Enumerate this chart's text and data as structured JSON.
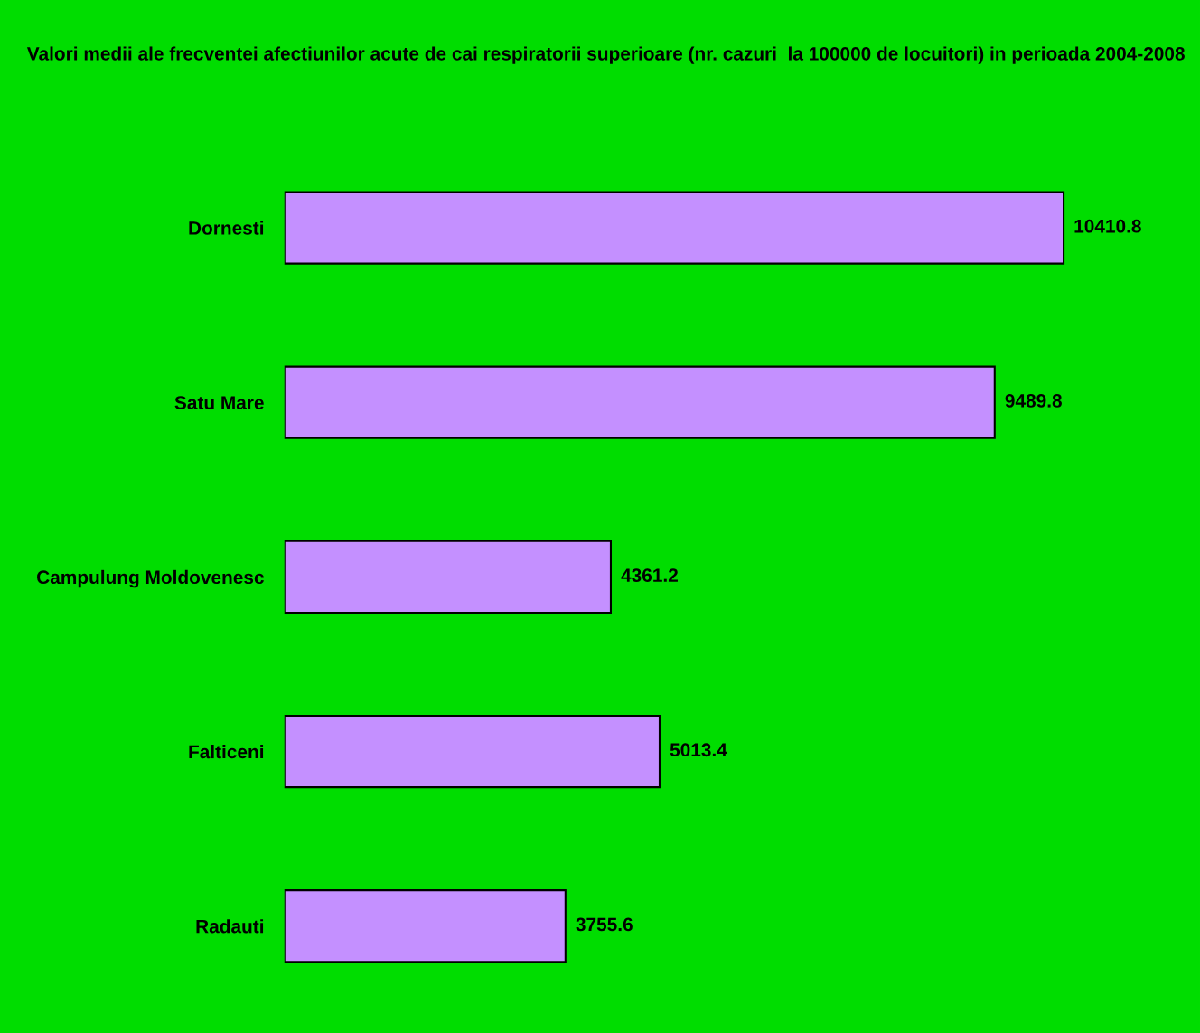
{
  "chart_data": {
    "type": "bar",
    "orientation": "horizontal",
    "title": "Valori medii ale frecventei afectiunilor acute de cai respiratorii superioare (nr. cazuri  la 100000 de locuitori) in perioada 2004-2008",
    "categories": [
      "Dornesti",
      "Satu Mare",
      "Campulung Moldovenesc",
      "Falticeni",
      "Radauti"
    ],
    "values": [
      10410.8,
      9489.8,
      4361.2,
      5013.4,
      3755.6
    ],
    "color": "#c490ff",
    "data_labels": true,
    "grid": false,
    "legend": false
  }
}
